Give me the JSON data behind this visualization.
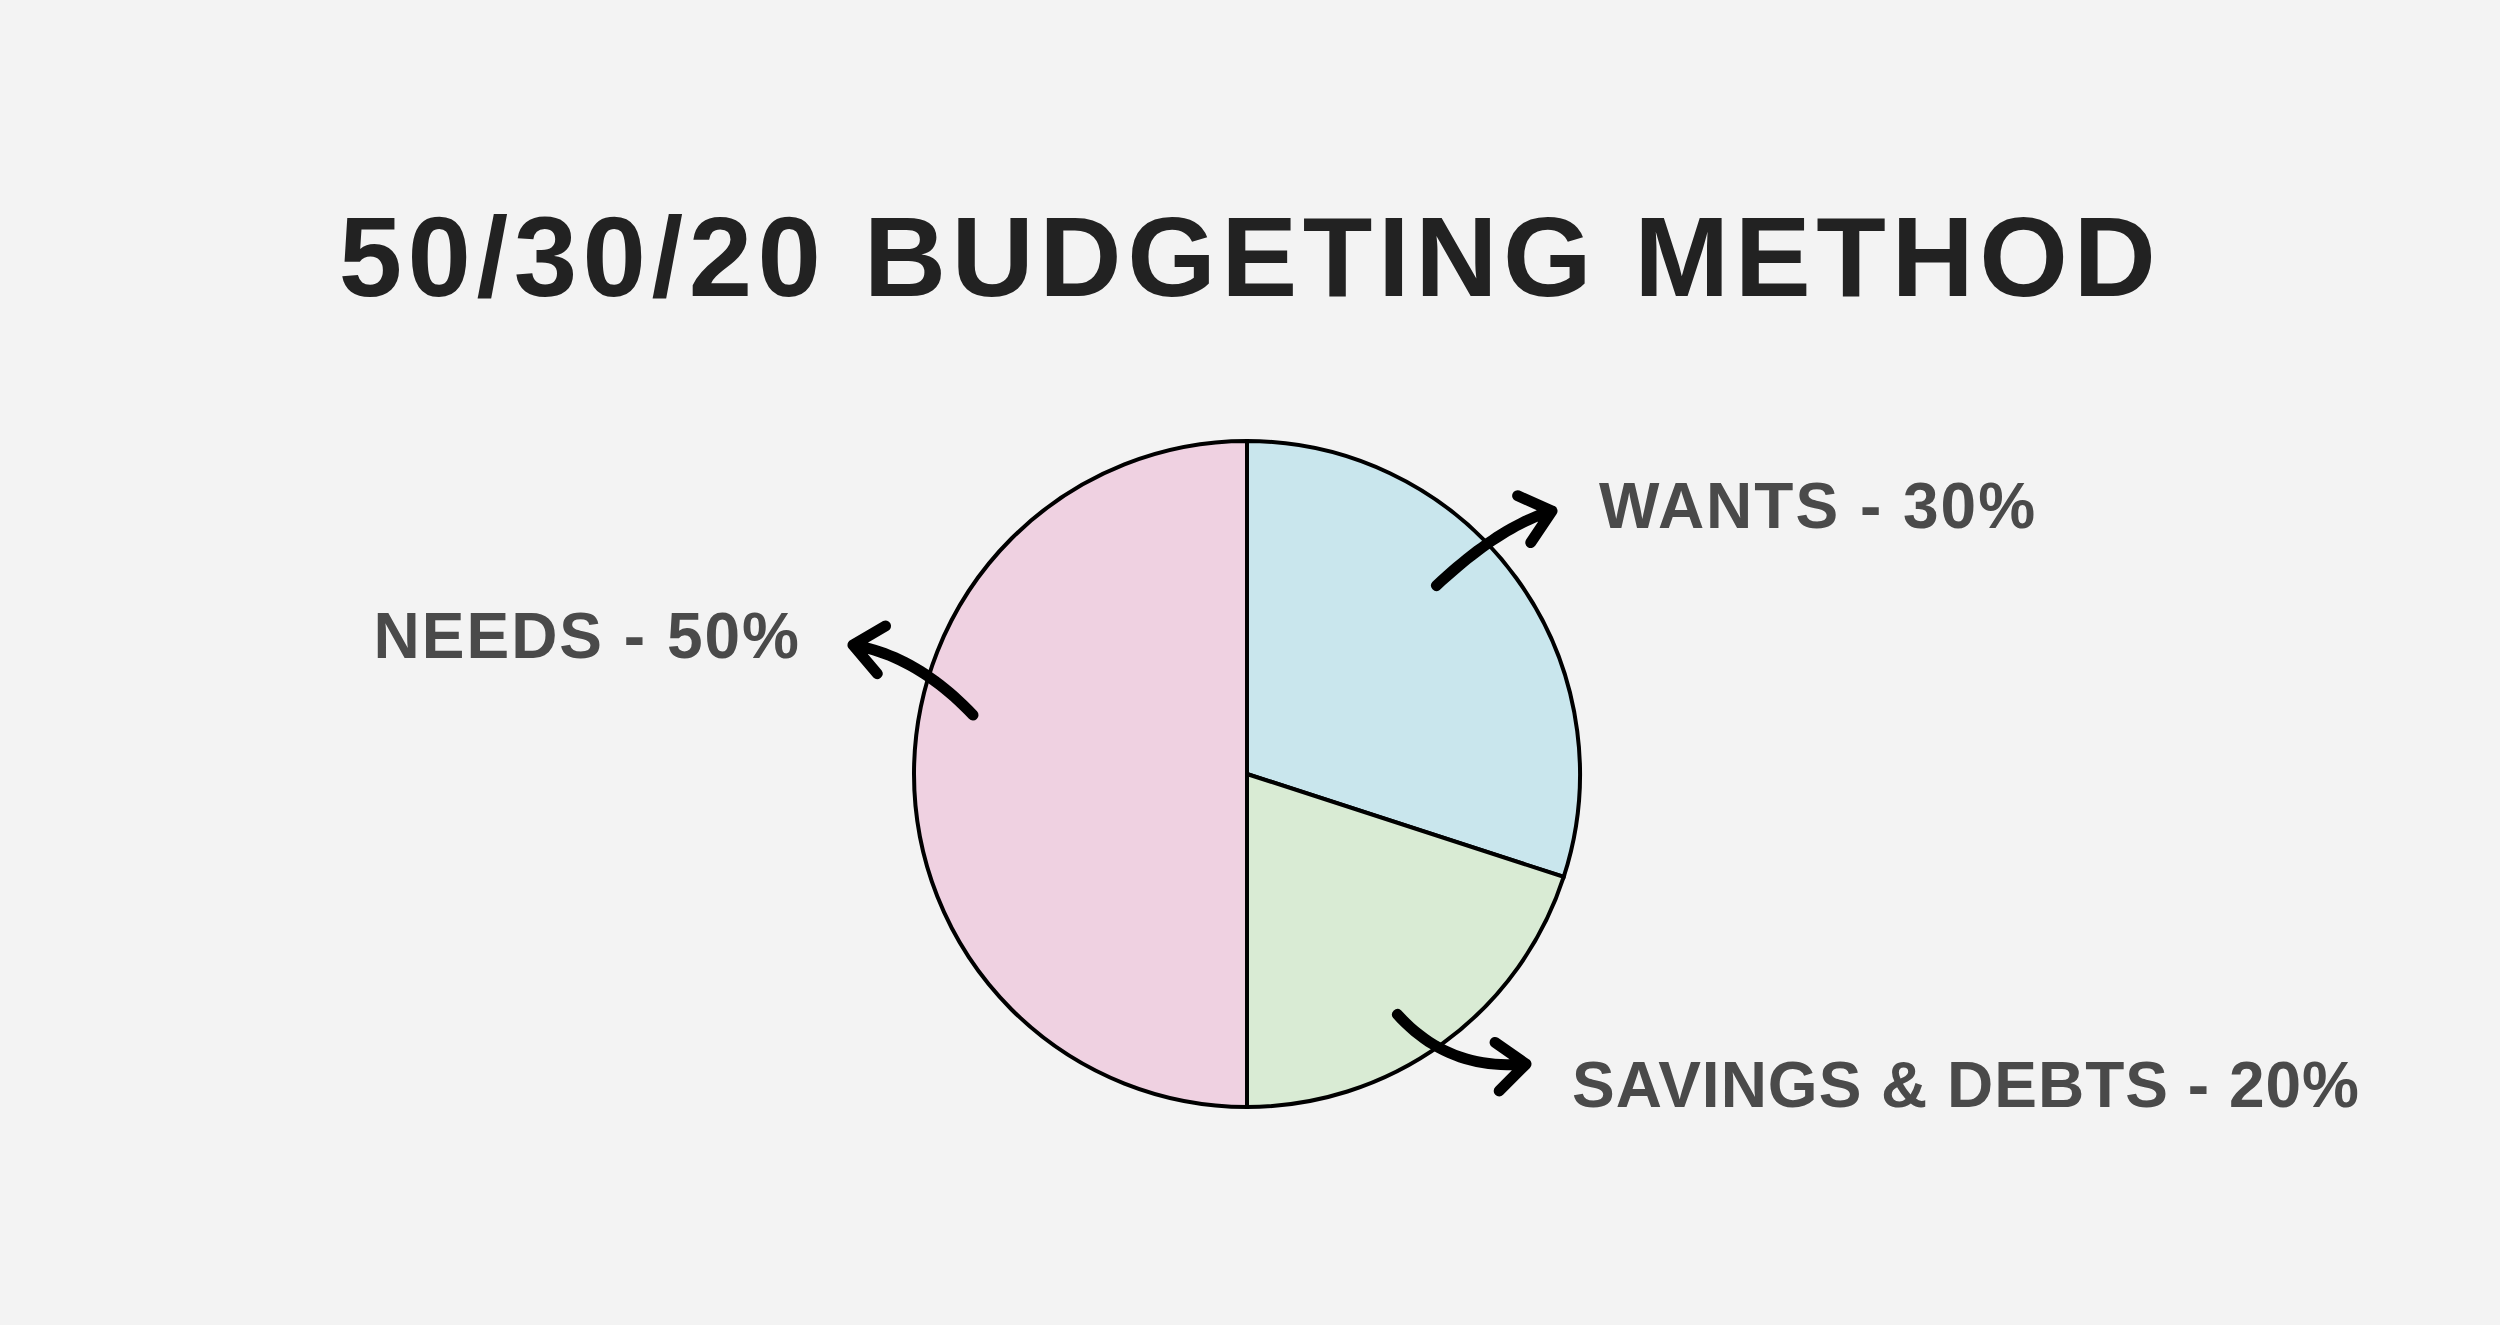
{
  "chart_data": {
    "type": "pie",
    "title": "50/30/20 BUDGETING METHOD",
    "categories": [
      "WANTS - 30%",
      "SAVINGS & DEBTS - 20%",
      "NEEDS - 50%"
    ],
    "values": [
      30,
      20,
      50
    ],
    "colors": [
      "#c9e6ed",
      "#d9ebd4",
      "#efd1e1"
    ],
    "legend": false
  }
}
